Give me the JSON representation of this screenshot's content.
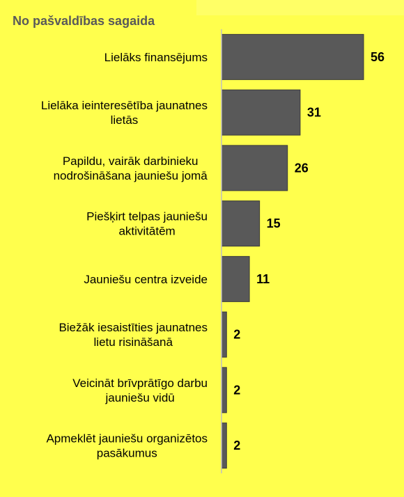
{
  "chart_data": {
    "type": "bar",
    "orientation": "horizontal",
    "title": "No pašvaldības sagaida",
    "categories": [
      [
        "Lielāks finansējums"
      ],
      [
        "Lielāka ieinteresētība jaunatnes",
        "lietās"
      ],
      [
        "Papildu, vairāk darbinieku",
        "nodrošināšana jauniešu jomā"
      ],
      [
        "Piešķirt telpas jauniešu",
        "aktivitātēm"
      ],
      [
        "Jauniešu centra izveide"
      ],
      [
        "Biežāk iesaistīties jaunatnes",
        "lietu risināšanā"
      ],
      [
        "Veicināt brīvprātīgo darbu",
        "jauniešu vidū"
      ],
      [
        "Apmeklēt jauniešu organizētos",
        "pasākumus"
      ]
    ],
    "values": [
      56,
      31,
      26,
      15,
      11,
      2,
      2,
      2
    ],
    "xlim": [
      0,
      56
    ],
    "grid": false,
    "legend": "none",
    "colors": {
      "bar": "#595959",
      "axis": "#bfbfbf",
      "background": "#ffff4d"
    }
  }
}
